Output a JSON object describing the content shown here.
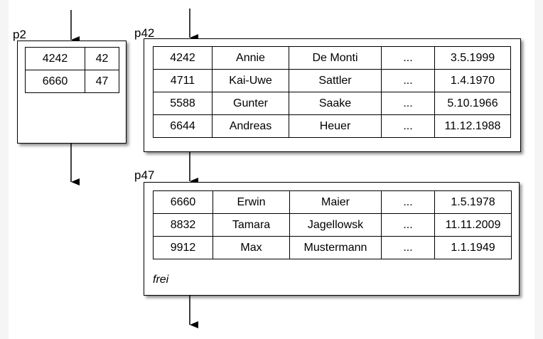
{
  "pages": {
    "p2": {
      "label": "p2",
      "rows": [
        [
          "4242",
          "42"
        ],
        [
          "6660",
          "47"
        ]
      ]
    },
    "p42": {
      "label": "p42",
      "rows": [
        [
          "4242",
          "Annie",
          "De Monti",
          "...",
          "3.5.1999"
        ],
        [
          "4711",
          "Kai-Uwe",
          "Sattler",
          "...",
          "1.4.1970"
        ],
        [
          "5588",
          "Gunter",
          "Saake",
          "...",
          "5.10.1966"
        ],
        [
          "6644",
          "Andreas",
          "Heuer",
          "...",
          "11.12.1988"
        ]
      ]
    },
    "p47": {
      "label": "p47",
      "rows": [
        [
          "6660",
          "Erwin",
          "Maier",
          "...",
          "1.5.1978"
        ],
        [
          "8832",
          "Tamara",
          "Jagellowsk",
          "...",
          "11.11.2009"
        ],
        [
          "9912",
          "Max",
          "Mustermann",
          "...",
          "1.1.1949"
        ]
      ],
      "free_label": "frei"
    }
  }
}
